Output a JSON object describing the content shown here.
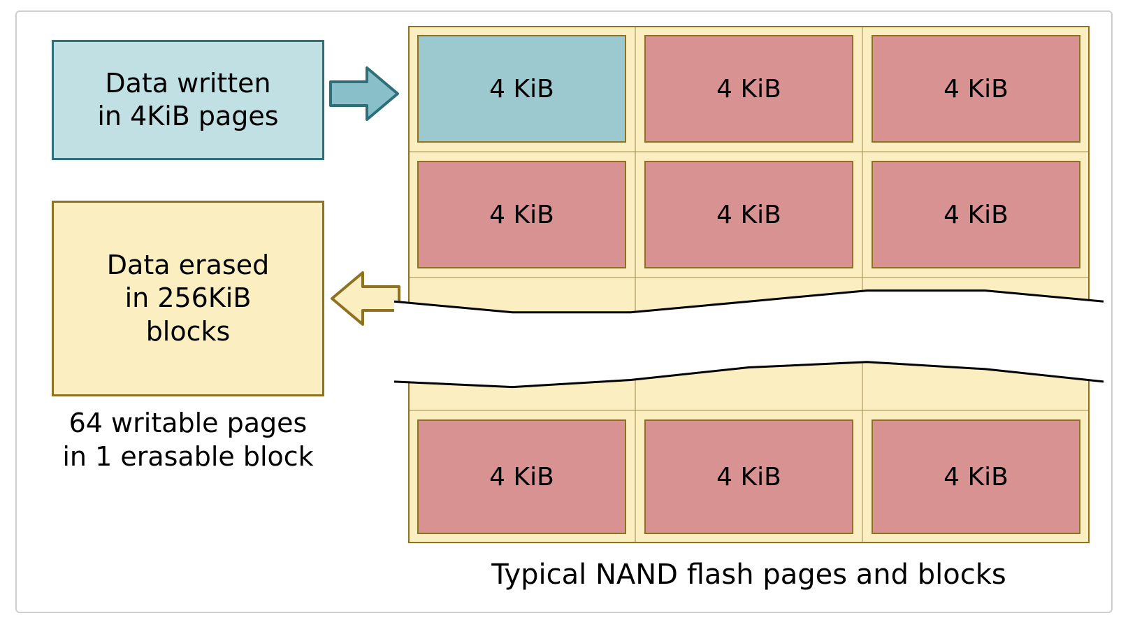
{
  "diagram": {
    "type": "infographic",
    "caption": "Typical NAND flash pages and blocks",
    "write_box": {
      "line1": "Data written",
      "line2": "in 4KiB pages",
      "fill": "#c1e0e3",
      "stroke": "#2f6f7a",
      "stroke_width": 3,
      "font_size": 38,
      "text_color": "#000000"
    },
    "erase_box": {
      "line1": "Data erased",
      "line2": "in 256KiB",
      "line3": "blocks",
      "fill": "#fbeec1",
      "stroke": "#8f7221",
      "stroke_width": 3,
      "font_size": 38,
      "text_color": "#000000"
    },
    "erase_caption": {
      "line1": "64 writable pages",
      "line2": "in 1 erasable block",
      "font_size": 38,
      "text_color": "#000000"
    },
    "arrow_write": {
      "fill": "#88bfc8",
      "stroke": "#2f6f7a",
      "stroke_width": 4
    },
    "arrow_erase": {
      "fill": "#fbeec1",
      "stroke": "#8f7221",
      "stroke_width": 4
    },
    "block_grid": {
      "outer_fill": "#fbeec1",
      "outer_stroke": "#8f7221",
      "outer_stroke_width": 2,
      "cell_divider_stroke": "#a08a4a",
      "cell_divider_width": 1,
      "page_fill_default": "#d99292",
      "page_fill_highlight": "#9cc8cf",
      "page_stroke": "#8f7221",
      "page_stroke_width": 2,
      "page_label": "4 KiB",
      "page_font_size": 36,
      "page_text_color": "#000000",
      "rows": 3,
      "cols": 3,
      "highlight_row": 0,
      "highlight_col": 0
    },
    "break_wave": {
      "fill": "#ffffff",
      "stroke": "#000000",
      "stroke_width": 3
    },
    "caption_font_size": 40,
    "caption_color": "#000000",
    "background": "#ffffff"
  }
}
